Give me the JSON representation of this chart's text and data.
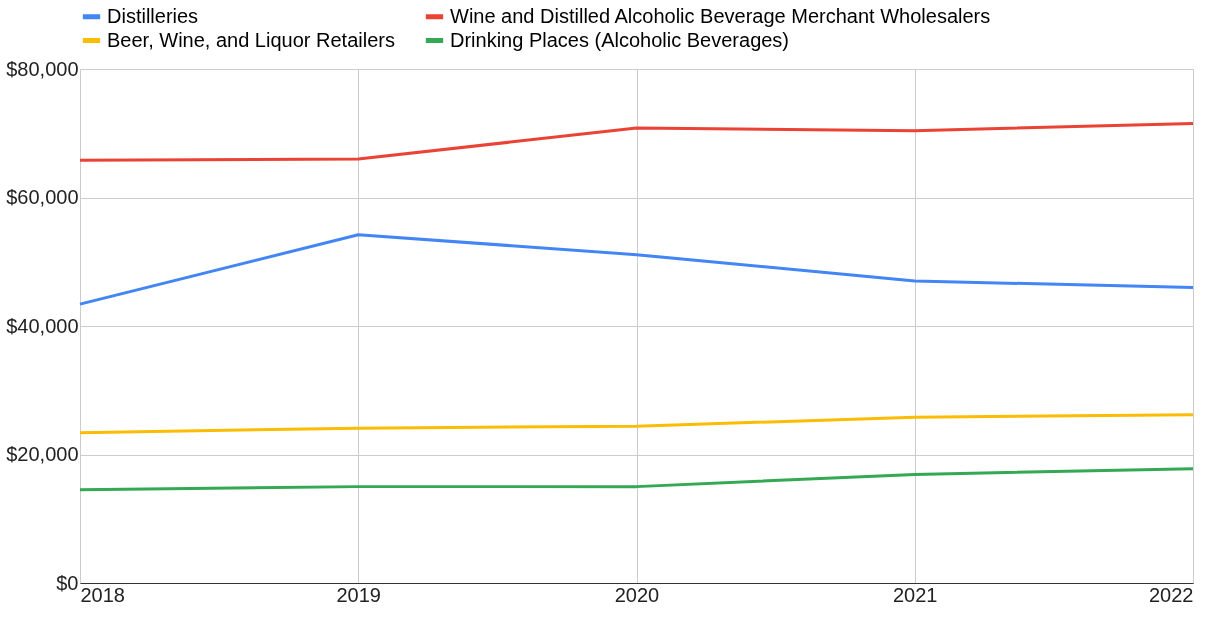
{
  "chart_data": {
    "type": "line",
    "x": [
      2018,
      2019,
      2020,
      2021,
      2022
    ],
    "series": [
      {
        "name": "Distilleries",
        "color": "#4285f4",
        "values": [
          43400,
          54200,
          51100,
          47000,
          46000
        ]
      },
      {
        "name": "Wine and Distilled Alcoholic Beverage Merchant Wholesalers",
        "color": "#ea4335",
        "values": [
          65800,
          66000,
          70800,
          70400,
          71500
        ]
      },
      {
        "name": "Beer, Wine, and Liquor Retailers",
        "color": "#fbbc04",
        "values": [
          23400,
          24100,
          24400,
          25800,
          26200
        ]
      },
      {
        "name": "Drinking Places (Alcoholic Beverages)",
        "color": "#34a853",
        "values": [
          14500,
          15000,
          15000,
          16900,
          17800
        ]
      }
    ],
    "xlim": [
      2018,
      2022
    ],
    "xticks": [
      2018,
      2019,
      2020,
      2021,
      2022
    ],
    "ylim": [
      0,
      80000
    ],
    "yticks": [
      {
        "value": 0,
        "label": "$0"
      },
      {
        "value": 20000,
        "label": "$20,000"
      },
      {
        "value": 40000,
        "label": "$40,000"
      },
      {
        "value": 60000,
        "label": "$60,000"
      },
      {
        "value": 80000,
        "label": "$80,000"
      }
    ],
    "grid": true,
    "legend": "top",
    "marker": "none",
    "line_style": "solid"
  }
}
